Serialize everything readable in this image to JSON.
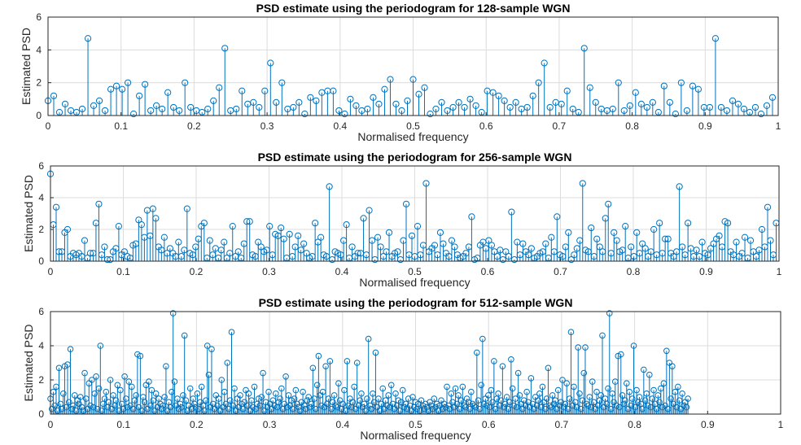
{
  "chart_data": [
    {
      "type": "stem",
      "title": "PSD estimate using the periodogram for 128-sample WGN",
      "xlabel": "Normalised frequency",
      "ylabel": "Estimated PSD",
      "xlim": [
        0,
        1
      ],
      "ylim": [
        0,
        6
      ],
      "xticks": [
        "0",
        "0.1",
        "0.2",
        "0.3",
        "0.4",
        "0.5",
        "0.6",
        "0.7",
        "0.8",
        "0.9",
        "1"
      ],
      "yticks": [
        "0",
        "2",
        "4",
        "6"
      ],
      "grid": true,
      "n": 128,
      "x_step": 0.0078125,
      "values": [
        0.9,
        1.2,
        0.2,
        0.7,
        0.3,
        0.2,
        0.4,
        4.7,
        0.6,
        0.9,
        0.3,
        1.6,
        1.8,
        1.6,
        2.0,
        0.1,
        1.2,
        1.9,
        0.3,
        0.6,
        0.4,
        1.4,
        0.5,
        0.3,
        2.0,
        0.5,
        0.3,
        0.2,
        0.4,
        0.9,
        1.7,
        4.1,
        0.3,
        0.4,
        1.5,
        0.7,
        0.8,
        0.5,
        1.5,
        3.2,
        0.8,
        2.0,
        0.4,
        0.5,
        0.8,
        0.1,
        1.1,
        0.9,
        1.4,
        1.5,
        1.5,
        0.3,
        0.1,
        1.0,
        0.6,
        0.3,
        0.4,
        1.1,
        0.7,
        1.6,
        2.2,
        0.7,
        0.3,
        0.9,
        2.2,
        1.3,
        1.7,
        0.1,
        0.4,
        0.8,
        0.3,
        0.5,
        0.8,
        0.5,
        1.0,
        0.6,
        0.2,
        1.5,
        1.4,
        1.2,
        0.9,
        0.5,
        0.8,
        0.4,
        0.5,
        1.2,
        2.0,
        3.2,
        0.5,
        0.8,
        0.7,
        1.5,
        0.4,
        0.2,
        4.1,
        1.7,
        0.8,
        0.4,
        0.3,
        0.4,
        2.0,
        0.3,
        0.6,
        1.4,
        0.7,
        0.5,
        0.8,
        0.2,
        1.8,
        0.8,
        0.1,
        2.0,
        0.3,
        1.8,
        1.6,
        0.5,
        0.5,
        4.7,
        0.5,
        0.3,
        0.9,
        0.7,
        0.4,
        0.2,
        0.5,
        0.1,
        0.6,
        1.1
      ]
    },
    {
      "type": "stem",
      "title": "PSD estimate  using the periodogram for 256-sample WGN",
      "xlabel": "Normalised frequency",
      "ylabel": "Estimated PSD",
      "xlim": [
        0,
        1
      ],
      "ylim": [
        0,
        6
      ],
      "xticks": [
        "0",
        "0.1",
        "0.2",
        "0.3",
        "0.4",
        "0.5",
        "0.6",
        "0.7",
        "0.8",
        "0.9",
        "1"
      ],
      "yticks": [
        "0",
        "2",
        "4",
        "6"
      ],
      "grid": true,
      "n": 256,
      "x_step": 0.00390625,
      "values": [
        5.5,
        2.3,
        3.4,
        0.6,
        0.6,
        1.8,
        2.0,
        0.3,
        0.5,
        0.4,
        0.5,
        0.3,
        1.3,
        0.2,
        0.5,
        0.5,
        2.4,
        3.6,
        0.4,
        0.9,
        0.1,
        0.1,
        0.6,
        0.8,
        2.2,
        0.4,
        0.6,
        0.3,
        0.2,
        1.0,
        1.1,
        2.6,
        2.3,
        1.5,
        3.2,
        1.6,
        3.3,
        2.7,
        0.9,
        0.7,
        1.5,
        0.5,
        0.8,
        0.5,
        0.3,
        1.2,
        0.3,
        0.7,
        3.3,
        0.5,
        0.4,
        0.9,
        1.4,
        2.2,
        2.4,
        0.2,
        1.3,
        0.4,
        0.8,
        0.2,
        0.7,
        1.2,
        0.2,
        0.5,
        2.2,
        0.3,
        0.6,
        0.2,
        1.1,
        2.5,
        2.5,
        0.4,
        0.3,
        1.2,
        0.9,
        0.6,
        0.7,
        2.2,
        0.4,
        1.7,
        1.6,
        2.1,
        1.4,
        0.2,
        1.7,
        0.3,
        0.9,
        1.6,
        0.7,
        1.1,
        0.5,
        0.2,
        0.3,
        2.4,
        1.2,
        1.5,
        0.4,
        0.3,
        4.7,
        0.1,
        0.6,
        0.5,
        0.4,
        1.3,
        2.3,
        0.2,
        0.9,
        0.3,
        0.5,
        0.5,
        2.7,
        0.4,
        3.2,
        1.3,
        0.1,
        1.5,
        0.9,
        0.3,
        0.6,
        1.8,
        0.3,
        0.5,
        0.6,
        0.1,
        1.3,
        3.6,
        0.4,
        1.6,
        0.3,
        2.2,
        0.4,
        1.0,
        4.9,
        0.6,
        0.8,
        1.0,
        0.4,
        1.8,
        1.1,
        0.5,
        0.3,
        1.3,
        0.9,
        0.4,
        0.2,
        0.3,
        0.5,
        0.9,
        2.8,
        0.1,
        0.2,
        1.0,
        1.2,
        0.8,
        1.3,
        1.0,
        0.6,
        0.3,
        0.7,
        0.1,
        0.6,
        0.3,
        3.1,
        0.1,
        1.2,
        0.4,
        1.1,
        0.6,
        0.4,
        0.8,
        0.2,
        0.3,
        0.5,
        0.6,
        1.1,
        0.2,
        1.5,
        0.6,
        2.8,
        0.4,
        0.3,
        0.9,
        1.8,
        0.1,
        0.4,
        0.8,
        1.3,
        4.9,
        0.7,
        0.6,
        2.1,
        0.3,
        1.4,
        0.9,
        0.6,
        2.7,
        3.6,
        0.5,
        1.8,
        1.3,
        0.6,
        0.7,
        2.2,
        0.2,
        0.9,
        0.3,
        1.8,
        0.5,
        1.1,
        0.8,
        0.3,
        0.6,
        2.0,
        0.4,
        2.4,
        0.5,
        1.4,
        1.4,
        0.5,
        0.3,
        0.6,
        4.7,
        0.9,
        0.4,
        2.4,
        0.8,
        0.3,
        0.7,
        0.3,
        1.2,
        0.5,
        0.4,
        0.8,
        1.1,
        1.4,
        1.6,
        0.9,
        2.5,
        2.4,
        0.6,
        0.4,
        1.2,
        0.3,
        0.5,
        1.5,
        0.2,
        1.3,
        0.6,
        0.3,
        0.7,
        2.0,
        0.9,
        3.4,
        1.3,
        0.4,
        2.4
      ]
    },
    {
      "type": "stem",
      "title": "PSD estimate using the periodogram for 512-sample WGN",
      "xlabel": "Normalised frequency",
      "ylabel": "Estimated PSD",
      "xlim": [
        0,
        1
      ],
      "ylim": [
        0,
        6
      ],
      "xticks": [
        "0",
        "0.1",
        "0.2",
        "0.3",
        "0.4",
        "0.5",
        "0.6",
        "0.7",
        "0.8",
        "0.9",
        "1"
      ],
      "yticks": [
        "0",
        "2",
        "4",
        "6"
      ],
      "grid": true,
      "n": 512,
      "x_step": 0.001953125,
      "values": [
        0.9,
        0.3,
        1.3,
        0.5,
        1.6,
        0.2,
        2.7,
        0.6,
        0.3,
        1.2,
        2.8,
        0.4,
        2.9,
        0.7,
        3.8,
        0.3,
        0.5,
        1.1,
        0.2,
        0.8,
        0.6,
        1.0,
        0.4,
        0.2,
        2.4,
        0.9,
        0.3,
        1.8,
        0.5,
        2.0,
        0.4,
        1.2,
        2.2,
        0.3,
        1.5,
        4.0,
        0.2,
        0.6,
        0.9,
        1.3,
        0.4,
        0.7,
        2.0,
        0.3,
        1.1,
        0.5,
        0.8,
        1.7,
        0.2,
        1.4,
        0.6,
        0.3,
        2.2,
        0.9,
        0.4,
        1.9,
        0.5,
        1.6,
        0.3,
        0.8,
        1.1,
        3.5,
        0.4,
        3.4,
        0.2,
        1.0,
        0.7,
        1.7,
        0.3,
        1.9,
        0.5,
        1.4,
        0.8,
        0.2,
        1.2,
        0.4,
        0.9,
        0.6,
        0.3,
        0.5,
        1.0,
        2.8,
        0.2,
        0.7,
        0.4,
        1.3,
        5.9,
        1.9,
        0.5,
        0.9,
        0.3,
        0.6,
        0.4,
        1.1,
        4.6,
        0.8,
        0.2,
        0.5,
        1.5,
        0.3,
        0.9,
        0.6,
        0.4,
        1.2,
        0.3,
        0.7,
        1.6,
        0.5,
        0.2,
        0.8,
        4.0,
        2.3,
        0.4,
        3.8,
        0.6,
        0.3,
        1.1,
        0.5,
        0.9,
        0.2,
        2.0,
        0.4,
        1.3,
        0.6,
        3.0,
        0.3,
        0.8,
        4.8,
        0.5,
        1.5,
        0.2,
        0.9,
        0.4,
        1.1,
        0.6,
        0.3,
        0.7,
        1.4,
        0.5,
        1.2,
        0.2,
        0.8,
        0.4,
        1.6,
        0.3,
        0.6,
        0.9,
        0.5,
        1.0,
        2.4,
        0.2,
        0.7,
        0.4,
        1.3,
        0.6,
        0.3,
        0.8,
        0.5,
        1.2,
        0.4,
        0.7,
        0.9,
        1.5,
        0.3,
        0.6,
        2.2,
        0.4,
        1.1,
        0.5,
        0.8,
        0.3,
        0.9,
        1.4,
        0.6,
        0.4,
        0.2,
        0.7,
        1.3,
        0.5,
        0.3,
        0.8,
        1.0,
        0.4,
        0.6,
        2.7,
        0.9,
        0.3,
        1.7,
        3.4,
        1.1,
        0.5,
        1.3,
        0.4,
        2.8,
        0.6,
        0.9,
        3.1,
        0.3,
        0.7,
        1.1,
        0.5,
        0.4,
        1.8,
        0.8,
        0.3,
        0.6,
        1.4,
        0.2,
        3.1,
        0.5,
        0.9,
        0.4,
        0.7,
        1.6,
        0.3,
        3.0,
        0.5,
        0.8,
        1.2,
        0.4,
        0.6,
        0.2,
        0.9,
        4.4,
        0.5,
        0.3,
        1.2,
        0.7,
        3.6,
        0.4,
        0.9,
        0.2,
        0.6,
        1.5,
        0.3,
        0.8,
        0.5,
        1.1,
        0.4,
        1.7,
        0.6,
        0.3,
        1.2,
        0.5,
        0.8,
        0.2,
        0.7,
        1.4,
        0.4,
        0.6,
        0.3,
        0.9,
        0.5,
        0.2,
        1.0,
        0.4,
        0.7,
        0.3,
        0.6,
        0.2,
        0.8,
        0.5,
        0.3,
        0.6,
        0.4,
        0.2,
        0.7,
        0.5,
        0.3,
        0.9,
        0.4,
        0.6,
        0.2,
        0.5,
        0.8,
        0.3,
        0.6,
        0.4,
        1.6,
        0.5,
        0.3,
        1.2,
        0.7,
        0.4,
        1.5,
        0.6,
        1.1,
        0.3,
        0.8,
        1.6,
        0.5,
        0.4,
        0.9,
        0.7,
        0.3,
        1.3,
        0.6,
        0.5,
        0.4,
        3.6,
        0.8,
        0.3,
        1.7,
        4.4,
        0.6,
        0.9,
        0.5,
        1.1,
        0.4,
        1.4,
        0.7,
        3.1,
        0.3,
        0.9,
        1.2,
        0.5,
        0.8,
        2.8,
        0.4,
        0.6,
        1.0,
        0.3,
        0.7,
        3.2,
        1.5,
        0.5,
        0.9,
        0.4,
        2.4,
        1.1,
        0.6,
        0.3,
        0.8,
        0.5,
        1.3,
        0.7,
        0.4,
        2.1,
        0.6,
        0.3,
        1.0,
        0.5,
        0.8,
        1.2,
        0.4,
        1.6,
        0.7,
        0.3,
        0.9,
        2.7,
        0.5,
        0.4,
        1.1,
        0.6,
        0.8,
        0.3,
        1.4,
        0.5,
        0.7,
        2.0,
        0.4,
        0.6,
        1.8,
        0.3,
        0.9,
        4.8,
        0.5,
        1.6,
        0.7,
        0.4,
        3.9,
        1.2,
        0.3,
        0.8,
        2.4,
        3.9,
        0.6,
        0.5,
        1.0,
        0.4,
        1.9,
        0.7,
        0.3,
        1.3,
        0.5,
        0.8,
        1.1,
        4.6,
        0.4,
        0.9,
        0.6,
        1.5,
        5.9,
        0.3,
        1.2,
        0.7,
        1.9,
        0.5,
        3.4,
        0.4,
        3.5,
        1.1,
        0.6,
        0.8,
        1.8,
        0.3,
        1.3,
        0.5,
        0.9,
        4.0,
        0.4,
        1.4,
        0.7,
        1.0,
        0.6,
        0.3,
        2.6,
        0.8,
        1.2,
        0.5,
        2.3,
        0.4,
        0.9,
        1.4,
        0.6,
        0.3,
        1.1,
        0.7,
        1.5,
        0.4,
        1.8,
        0.5,
        3.7,
        0.3,
        3.0,
        0.9,
        2.8,
        0.6,
        1.3,
        0.4,
        1.6,
        0.8,
        0.3,
        1.2,
        0.5,
        0.7,
        0.4,
        0.9
      ]
    }
  ]
}
